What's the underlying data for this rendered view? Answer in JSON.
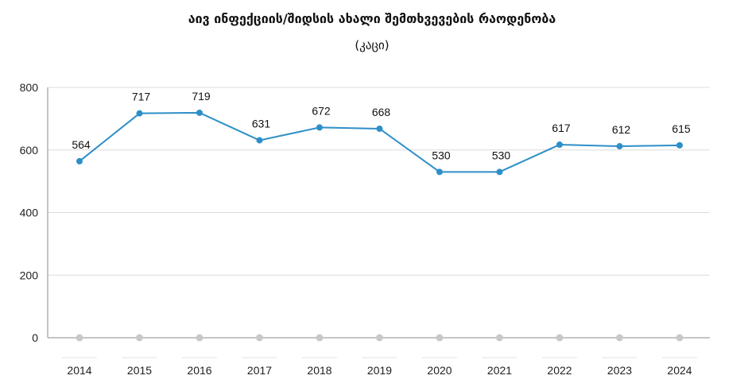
{
  "chart_data": {
    "type": "line",
    "title": "აივ ინფექციის/შიდსის ახალი შემთხვევების რაოდენობა",
    "subtitle": "(კაცი)",
    "categories": [
      "2014",
      "2015",
      "2016",
      "2017",
      "2018",
      "2019",
      "2020",
      "2021",
      "2022",
      "2023",
      "2024"
    ],
    "series": [
      {
        "values": [
          564,
          717,
          719,
          631,
          672,
          668,
          530,
          530,
          617,
          612,
          615
        ],
        "color": "#2e8fc9"
      },
      {
        "values": [
          0,
          0,
          0,
          0,
          0,
          0,
          0,
          0,
          0,
          0,
          0
        ],
        "color": "#c8c8c8"
      }
    ],
    "data_labels": [
      "564",
      "717",
      "719",
      "631",
      "672",
      "668",
      "530",
      "530",
      "617",
      "612",
      "615"
    ],
    "ylim": [
      0,
      800
    ],
    "yticks": [
      0,
      200,
      400,
      600,
      800
    ],
    "ytick_labels": [
      "0",
      "200",
      "400",
      "600",
      "800"
    ],
    "grid": true,
    "legend": "none"
  }
}
